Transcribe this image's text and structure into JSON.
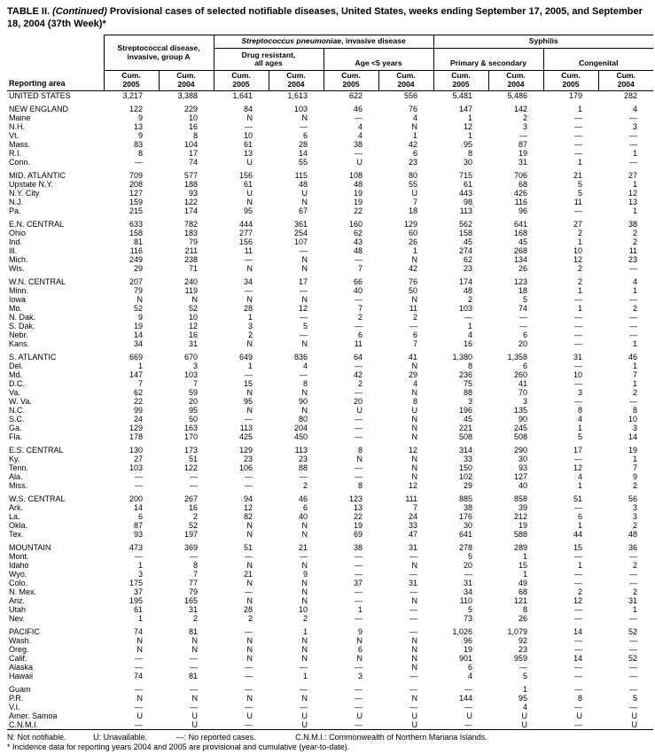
{
  "title": {
    "label": "TABLE II.",
    "continued": "(Continued)",
    "rest": "Provisional cases of selected notifiable diseases, United States, weeks ending September 17, 2005, and September 18, 2004 (37th Week)*"
  },
  "header": {
    "reporting_area": "Reporting area",
    "group_a_line1": "Streptococcal disease,",
    "group_a_line2": "invasive, group A",
    "strep_pneumo_italic": "Streptococcus pneumoniae",
    "strep_pneumo_rest": ", invasive disease",
    "drug_resistant_line1": "Drug resistant,",
    "drug_resistant_line2": "all ages",
    "age_under5": "Age <5 years",
    "syphilis": "Syphilis",
    "primary_secondary": "Primary & secondary",
    "congenital": "Congenital",
    "cum_label": "Cum.",
    "years": [
      "2005",
      "2004",
      "2005",
      "2004",
      "2005",
      "2004",
      "2005",
      "2004",
      "2005",
      "2004"
    ]
  },
  "table": {
    "rows": [
      {
        "area": "UNITED STATES",
        "gap": false,
        "v": [
          "3,217",
          "3,388",
          "1,641",
          "1,613",
          "622",
          "556",
          "5,481",
          "5,486",
          "179",
          "282"
        ]
      },
      {
        "area": "NEW ENGLAND",
        "gap": true,
        "v": [
          "122",
          "229",
          "84",
          "103",
          "46",
          "76",
          "147",
          "142",
          "1",
          "4"
        ]
      },
      {
        "area": "Maine",
        "gap": false,
        "v": [
          "9",
          "10",
          "N",
          "N",
          "—",
          "4",
          "1",
          "2",
          "—",
          "—"
        ]
      },
      {
        "area": "N.H.",
        "gap": false,
        "v": [
          "13",
          "16",
          "—",
          "—",
          "4",
          "N",
          "12",
          "3",
          "—",
          "3"
        ]
      },
      {
        "area": "Vt.",
        "gap": false,
        "v": [
          "9",
          "8",
          "10",
          "6",
          "4",
          "1",
          "1",
          "—",
          "—",
          "—"
        ]
      },
      {
        "area": "Mass.",
        "gap": false,
        "v": [
          "83",
          "104",
          "61",
          "28",
          "38",
          "42",
          "95",
          "87",
          "—",
          "—"
        ]
      },
      {
        "area": "R.I.",
        "gap": false,
        "v": [
          "8",
          "17",
          "13",
          "14",
          "—",
          "6",
          "8",
          "19",
          "—",
          "1"
        ]
      },
      {
        "area": "Conn.",
        "gap": false,
        "v": [
          "—",
          "74",
          "U",
          "55",
          "U",
          "23",
          "30",
          "31",
          "1",
          "—"
        ]
      },
      {
        "area": "MID. ATLANTIC",
        "gap": true,
        "v": [
          "709",
          "577",
          "156",
          "115",
          "108",
          "80",
          "715",
          "706",
          "21",
          "27"
        ]
      },
      {
        "area": "Upstate N.Y.",
        "gap": false,
        "v": [
          "208",
          "188",
          "61",
          "48",
          "48",
          "55",
          "61",
          "68",
          "5",
          "1"
        ]
      },
      {
        "area": "N.Y. City",
        "gap": false,
        "v": [
          "127",
          "93",
          "U",
          "U",
          "19",
          "U",
          "443",
          "426",
          "5",
          "12"
        ]
      },
      {
        "area": "N.J.",
        "gap": false,
        "v": [
          "159",
          "122",
          "N",
          "N",
          "19",
          "7",
          "98",
          "116",
          "11",
          "13"
        ]
      },
      {
        "area": "Pa.",
        "gap": false,
        "v": [
          "215",
          "174",
          "95",
          "67",
          "22",
          "18",
          "113",
          "96",
          "—",
          "1"
        ]
      },
      {
        "area": "E.N. CENTRAL",
        "gap": true,
        "v": [
          "633",
          "782",
          "444",
          "361",
          "160",
          "129",
          "562",
          "641",
          "27",
          "38"
        ]
      },
      {
        "area": "Ohio",
        "gap": false,
        "v": [
          "158",
          "183",
          "277",
          "254",
          "62",
          "60",
          "158",
          "168",
          "2",
          "2"
        ]
      },
      {
        "area": "Ind.",
        "gap": false,
        "v": [
          "81",
          "79",
          "156",
          "107",
          "43",
          "26",
          "45",
          "45",
          "1",
          "2"
        ]
      },
      {
        "area": "Ill.",
        "gap": false,
        "v": [
          "116",
          "211",
          "11",
          "—",
          "48",
          "1",
          "274",
          "268",
          "10",
          "11"
        ]
      },
      {
        "area": "Mich.",
        "gap": false,
        "v": [
          "249",
          "238",
          "—",
          "N",
          "—",
          "N",
          "62",
          "134",
          "12",
          "23"
        ]
      },
      {
        "area": "Wis.",
        "gap": false,
        "v": [
          "29",
          "71",
          "N",
          "N",
          "7",
          "42",
          "23",
          "26",
          "2",
          "—"
        ]
      },
      {
        "area": "W.N. CENTRAL",
        "gap": true,
        "v": [
          "207",
          "240",
          "34",
          "17",
          "66",
          "76",
          "174",
          "123",
          "2",
          "4"
        ]
      },
      {
        "area": "Minn.",
        "gap": false,
        "v": [
          "79",
          "119",
          "—",
          "—",
          "40",
          "50",
          "48",
          "18",
          "1",
          "1"
        ]
      },
      {
        "area": "Iowa",
        "gap": false,
        "v": [
          "N",
          "N",
          "N",
          "N",
          "—",
          "N",
          "2",
          "5",
          "—",
          "—"
        ]
      },
      {
        "area": "Mo.",
        "gap": false,
        "v": [
          "52",
          "52",
          "28",
          "12",
          "7",
          "11",
          "103",
          "74",
          "1",
          "2"
        ]
      },
      {
        "area": "N. Dak.",
        "gap": false,
        "v": [
          "9",
          "10",
          "1",
          "—",
          "2",
          "2",
          "—",
          "—",
          "—",
          "—"
        ]
      },
      {
        "area": "S. Dak.",
        "gap": false,
        "v": [
          "19",
          "12",
          "3",
          "5",
          "—",
          "—",
          "1",
          "—",
          "—",
          "—"
        ]
      },
      {
        "area": "Nebr.",
        "gap": false,
        "v": [
          "14",
          "16",
          "2",
          "—",
          "6",
          "6",
          "4",
          "6",
          "—",
          "—"
        ]
      },
      {
        "area": "Kans.",
        "gap": false,
        "v": [
          "34",
          "31",
          "N",
          "N",
          "11",
          "7",
          "16",
          "20",
          "—",
          "1"
        ]
      },
      {
        "area": "S. ATLANTIC",
        "gap": true,
        "v": [
          "669",
          "670",
          "649",
          "836",
          "64",
          "41",
          "1,380",
          "1,358",
          "31",
          "46"
        ]
      },
      {
        "area": "Del.",
        "gap": false,
        "v": [
          "1",
          "3",
          "1",
          "4",
          "—",
          "N",
          "8",
          "6",
          "—",
          "1"
        ]
      },
      {
        "area": "Md.",
        "gap": false,
        "v": [
          "147",
          "103",
          "—",
          "—",
          "42",
          "29",
          "236",
          "260",
          "10",
          "7"
        ]
      },
      {
        "area": "D.C.",
        "gap": false,
        "v": [
          "7",
          "7",
          "15",
          "8",
          "2",
          "4",
          "75",
          "41",
          "—",
          "1"
        ]
      },
      {
        "area": "Va.",
        "gap": false,
        "v": [
          "62",
          "59",
          "N",
          "N",
          "—",
          "N",
          "88",
          "70",
          "3",
          "2"
        ]
      },
      {
        "area": "W. Va.",
        "gap": false,
        "v": [
          "22",
          "20",
          "95",
          "90",
          "20",
          "8",
          "3",
          "3",
          "—",
          "—"
        ]
      },
      {
        "area": "N.C.",
        "gap": false,
        "v": [
          "99",
          "95",
          "N",
          "N",
          "U",
          "U",
          "196",
          "135",
          "8",
          "8"
        ]
      },
      {
        "area": "S.C.",
        "gap": false,
        "v": [
          "24",
          "50",
          "—",
          "80",
          "—",
          "N",
          "45",
          "90",
          "4",
          "10"
        ]
      },
      {
        "area": "Ga.",
        "gap": false,
        "v": [
          "129",
          "163",
          "113",
          "204",
          "—",
          "N",
          "221",
          "245",
          "1",
          "3"
        ]
      },
      {
        "area": "Fla.",
        "gap": false,
        "v": [
          "178",
          "170",
          "425",
          "450",
          "—",
          "N",
          "508",
          "508",
          "5",
          "14"
        ]
      },
      {
        "area": "E.S. CENTRAL",
        "gap": true,
        "v": [
          "130",
          "173",
          "129",
          "113",
          "8",
          "12",
          "314",
          "290",
          "17",
          "19"
        ]
      },
      {
        "area": "Ky.",
        "gap": false,
        "v": [
          "27",
          "51",
          "23",
          "23",
          "N",
          "N",
          "33",
          "30",
          "—",
          "1"
        ]
      },
      {
        "area": "Tenn.",
        "gap": false,
        "v": [
          "103",
          "122",
          "106",
          "88",
          "—",
          "N",
          "150",
          "93",
          "12",
          "7"
        ]
      },
      {
        "area": "Ala.",
        "gap": false,
        "v": [
          "—",
          "—",
          "—",
          "—",
          "—",
          "N",
          "102",
          "127",
          "4",
          "9"
        ]
      },
      {
        "area": "Miss.",
        "gap": false,
        "v": [
          "—",
          "—",
          "—",
          "2",
          "8",
          "12",
          "29",
          "40",
          "1",
          "2"
        ]
      },
      {
        "area": "W.S. CENTRAL",
        "gap": true,
        "v": [
          "200",
          "267",
          "94",
          "46",
          "123",
          "111",
          "885",
          "858",
          "51",
          "56"
        ]
      },
      {
        "area": "Ark.",
        "gap": false,
        "v": [
          "14",
          "16",
          "12",
          "6",
          "13",
          "7",
          "38",
          "39",
          "—",
          "3"
        ]
      },
      {
        "area": "La.",
        "gap": false,
        "v": [
          "6",
          "2",
          "82",
          "40",
          "22",
          "24",
          "176",
          "212",
          "6",
          "3"
        ]
      },
      {
        "area": "Okla.",
        "gap": false,
        "v": [
          "87",
          "52",
          "N",
          "N",
          "19",
          "33",
          "30",
          "19",
          "1",
          "2"
        ]
      },
      {
        "area": "Tex.",
        "gap": false,
        "v": [
          "93",
          "197",
          "N",
          "N",
          "69",
          "47",
          "641",
          "588",
          "44",
          "48"
        ]
      },
      {
        "area": "MOUNTAIN",
        "gap": true,
        "v": [
          "473",
          "369",
          "51",
          "21",
          "38",
          "31",
          "278",
          "289",
          "15",
          "36"
        ]
      },
      {
        "area": "Mont.",
        "gap": false,
        "v": [
          "—",
          "—",
          "—",
          "—",
          "—",
          "—",
          "5",
          "1",
          "—",
          "—"
        ]
      },
      {
        "area": "Idaho",
        "gap": false,
        "v": [
          "1",
          "8",
          "N",
          "N",
          "—",
          "N",
          "20",
          "15",
          "1",
          "2"
        ]
      },
      {
        "area": "Wyo.",
        "gap": false,
        "v": [
          "3",
          "7",
          "21",
          "9",
          "—",
          "—",
          "—",
          "1",
          "—",
          "—"
        ]
      },
      {
        "area": "Colo.",
        "gap": false,
        "v": [
          "175",
          "77",
          "N",
          "N",
          "37",
          "31",
          "31",
          "49",
          "—",
          "—"
        ]
      },
      {
        "area": "N. Mex.",
        "gap": false,
        "v": [
          "37",
          "79",
          "—",
          "N",
          "—",
          "—",
          "34",
          "68",
          "2",
          "2"
        ]
      },
      {
        "area": "Ariz.",
        "gap": false,
        "v": [
          "195",
          "165",
          "N",
          "N",
          "—",
          "N",
          "110",
          "121",
          "12",
          "31"
        ]
      },
      {
        "area": "Utah",
        "gap": false,
        "v": [
          "61",
          "31",
          "28",
          "10",
          "1",
          "—",
          "5",
          "8",
          "—",
          "1"
        ]
      },
      {
        "area": "Nev.",
        "gap": false,
        "v": [
          "1",
          "2",
          "2",
          "2",
          "—",
          "—",
          "73",
          "26",
          "—",
          "—"
        ]
      },
      {
        "area": "PACIFIC",
        "gap": true,
        "v": [
          "74",
          "81",
          "—",
          "1",
          "9",
          "—",
          "1,026",
          "1,079",
          "14",
          "52"
        ]
      },
      {
        "area": "Wash.",
        "gap": false,
        "v": [
          "N",
          "N",
          "N",
          "N",
          "N",
          "N",
          "96",
          "92",
          "—",
          "—"
        ]
      },
      {
        "area": "Oreg.",
        "gap": false,
        "v": [
          "N",
          "N",
          "N",
          "N",
          "6",
          "N",
          "19",
          "23",
          "—",
          "—"
        ]
      },
      {
        "area": "Calif.",
        "gap": false,
        "v": [
          "—",
          "—",
          "N",
          "N",
          "N",
          "N",
          "901",
          "959",
          "14",
          "52"
        ]
      },
      {
        "area": "Alaska",
        "gap": false,
        "v": [
          "—",
          "—",
          "—",
          "—",
          "—",
          "N",
          "6",
          "—",
          "—",
          "—"
        ]
      },
      {
        "area": "Hawaii",
        "gap": false,
        "v": [
          "74",
          "81",
          "—",
          "1",
          "3",
          "—",
          "4",
          "5",
          "—",
          "—"
        ]
      },
      {
        "area": "Guam",
        "gap": true,
        "v": [
          "—",
          "—",
          "—",
          "—",
          "—",
          "—",
          "—",
          "1",
          "—",
          "—"
        ]
      },
      {
        "area": "P.R.",
        "gap": false,
        "v": [
          "N",
          "N",
          "N",
          "N",
          "—",
          "N",
          "144",
          "95",
          "8",
          "5"
        ]
      },
      {
        "area": "V.I.",
        "gap": false,
        "v": [
          "—",
          "—",
          "—",
          "—",
          "—",
          "—",
          "—",
          "4",
          "—",
          "—"
        ]
      },
      {
        "area": "Amer. Samoa",
        "gap": false,
        "v": [
          "U",
          "U",
          "U",
          "U",
          "U",
          "U",
          "U",
          "U",
          "U",
          "U"
        ]
      },
      {
        "area": "C.N.M.I.",
        "gap": false,
        "v": [
          "—",
          "U",
          "—",
          "U",
          "—",
          "U",
          "—",
          "U",
          "—",
          "U"
        ]
      }
    ]
  },
  "footer": {
    "legend": [
      "N: Not notifiable.",
      "U: Unavailable.",
      "—: No reported cases.",
      "C.N.M.I.: Commonwealth of Northern Mariana Islands."
    ],
    "footnote": "* Incidence data for reporting years 2004 and 2005 are provisional and cumulative (year-to-date)."
  }
}
